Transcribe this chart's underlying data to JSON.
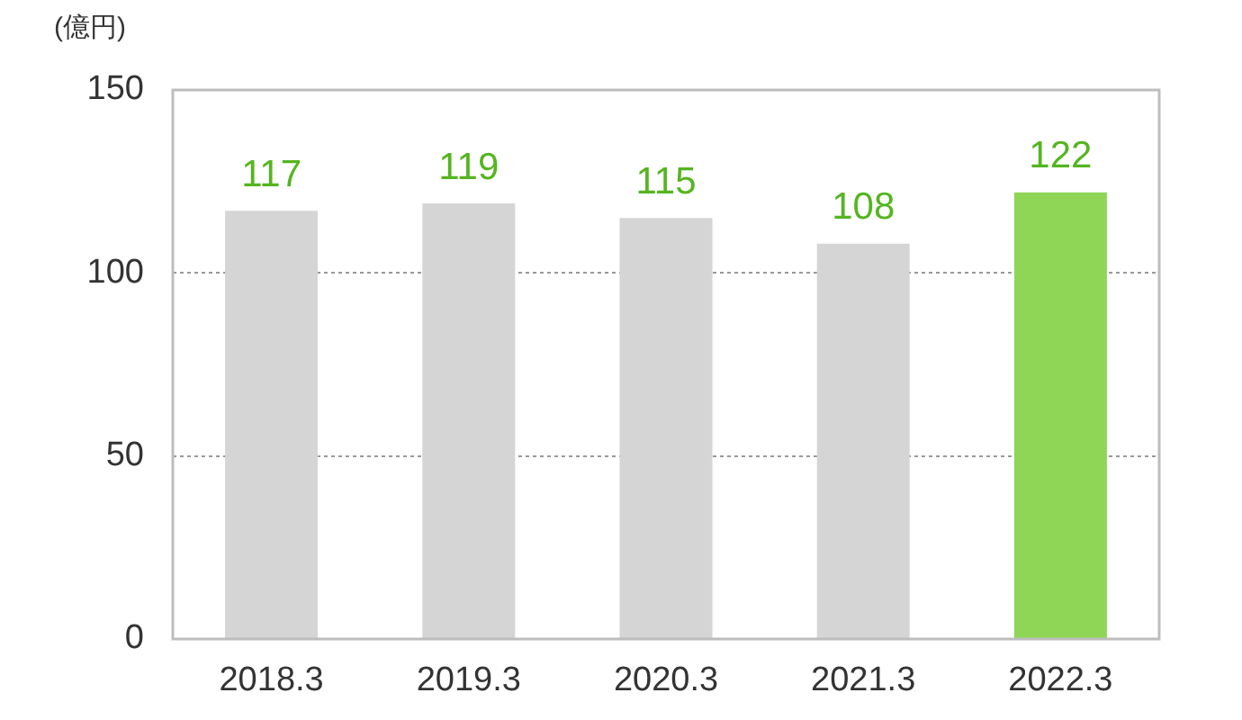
{
  "chart_data": {
    "type": "bar",
    "ylabel": "(億円)",
    "categories": [
      "2018.3",
      "2019.3",
      "2020.3",
      "2021.3",
      "2022.3"
    ],
    "values": [
      117,
      119,
      115,
      108,
      122
    ],
    "colors": [
      "#d5d5d5",
      "#d5d5d5",
      "#d5d5d5",
      "#d5d5d5",
      "#8fd657"
    ],
    "ylim": [
      0,
      150
    ],
    "yticks": [
      0,
      50,
      100,
      150
    ],
    "grid": "y",
    "data_labels": true
  }
}
